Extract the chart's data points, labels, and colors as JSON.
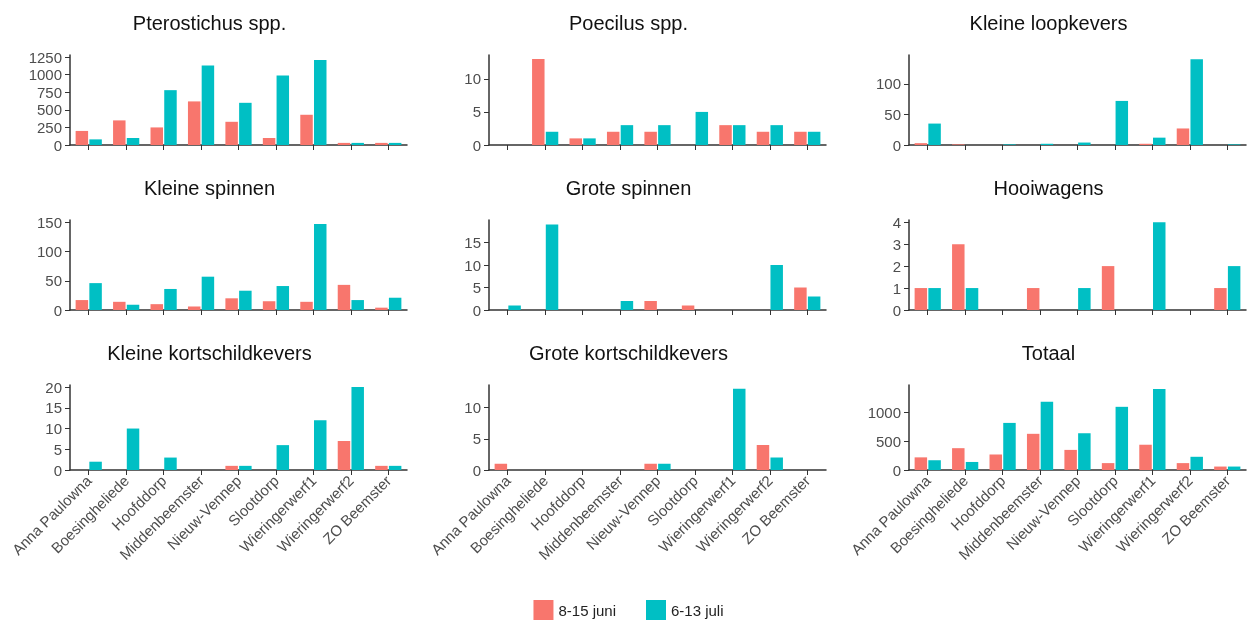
{
  "chart_data": [
    {
      "type": "bar",
      "title": "Pterostichus spp.",
      "categories": [
        null,
        null,
        null,
        null,
        null,
        null,
        null,
        null,
        null
      ],
      "series": [
        {
          "color": "#f8766d",
          "values": [
            200,
            350,
            250,
            620,
            330,
            100,
            430,
            30,
            30
          ]
        },
        {
          "color": "#00bfc4",
          "values": [
            80,
            100,
            780,
            1130,
            600,
            990,
            1210,
            30,
            30
          ]
        }
      ],
      "ylim": [
        0,
        1280
      ],
      "yticks": [
        0,
        250,
        500,
        750,
        1000,
        1250
      ],
      "grid": false,
      "legend": false,
      "tick_labels": "y"
    },
    {
      "type": "bar",
      "title": "Poecilus spp.",
      "categories": [
        null,
        null,
        null,
        null,
        null,
        null,
        null,
        null,
        null
      ],
      "series": [
        {
          "color": "#f8766d",
          "values": [
            null,
            13,
            1,
            2,
            2,
            null,
            3,
            2,
            2
          ]
        },
        {
          "color": "#00bfc4",
          "values": [
            null,
            2,
            1,
            3,
            3,
            5,
            3,
            3,
            2
          ]
        }
      ],
      "ylim": [
        0,
        13.6
      ],
      "yticks": [
        0,
        5,
        10
      ],
      "grid": false,
      "legend": false,
      "tick_labels": "y"
    },
    {
      "type": "bar",
      "title": "Kleine loopkevers",
      "categories": [
        null,
        null,
        null,
        null,
        null,
        null,
        null,
        null,
        null
      ],
      "series": [
        {
          "color": "#f8766d",
          "values": [
            3,
            1,
            null,
            null,
            null,
            null,
            2,
            27,
            null
          ]
        },
        {
          "color": "#00bfc4",
          "values": [
            35,
            null,
            1,
            2,
            4,
            72,
            12,
            140,
            1
          ]
        }
      ],
      "ylim": [
        0,
        147
      ],
      "yticks": [
        0,
        50,
        100
      ],
      "grid": false,
      "legend": false,
      "tick_labels": "y"
    },
    {
      "type": "bar",
      "title": "Kleine spinnen",
      "categories": [
        null,
        null,
        null,
        null,
        null,
        null,
        null,
        null,
        null
      ],
      "series": [
        {
          "color": "#f8766d",
          "values": [
            17,
            14,
            10,
            6,
            20,
            15,
            14,
            43,
            4
          ]
        },
        {
          "color": "#00bfc4",
          "values": [
            46,
            9,
            36,
            57,
            33,
            41,
            147,
            17,
            21
          ]
        }
      ],
      "ylim": [
        0,
        154
      ],
      "yticks": [
        0,
        50,
        100,
        150
      ],
      "grid": false,
      "legend": false,
      "tick_labels": "y"
    },
    {
      "type": "bar",
      "title": "Grote spinnen",
      "categories": [
        null,
        null,
        null,
        null,
        null,
        null,
        null,
        null,
        null
      ],
      "series": [
        {
          "color": "#f8766d",
          "values": [
            null,
            null,
            null,
            null,
            2,
            1,
            null,
            null,
            5
          ]
        },
        {
          "color": "#00bfc4",
          "values": [
            1,
            19,
            null,
            2,
            null,
            null,
            null,
            10,
            3
          ]
        }
      ],
      "ylim": [
        0,
        20
      ],
      "yticks": [
        0,
        5,
        10,
        15
      ],
      "grid": false,
      "legend": false,
      "tick_labels": "y"
    },
    {
      "type": "bar",
      "title": "Hooiwagens",
      "categories": [
        null,
        null,
        null,
        null,
        null,
        null,
        null,
        null,
        null
      ],
      "series": [
        {
          "color": "#f8766d",
          "values": [
            1,
            3,
            null,
            1,
            null,
            2,
            null,
            null,
            1
          ]
        },
        {
          "color": "#00bfc4",
          "values": [
            1,
            1,
            null,
            null,
            1,
            null,
            4,
            null,
            2
          ]
        }
      ],
      "ylim": [
        0,
        4.1
      ],
      "yticks": [
        0,
        1,
        2,
        3,
        4
      ],
      "grid": false,
      "legend": false,
      "tick_labels": "y"
    },
    {
      "type": "bar",
      "title": "Kleine kortschildkevers",
      "categories": [
        "Anna Paulowna",
        "Boesingheliede",
        "Hoofddorp",
        "Middenbeemster",
        "Nieuw-Vennep",
        "Slootdorp",
        "Wieringerwerf1",
        "Wieringerwerf2",
        "ZO Beemster"
      ],
      "series": [
        {
          "color": "#f8766d",
          "values": [
            null,
            null,
            null,
            null,
            1,
            null,
            null,
            7,
            1
          ]
        },
        {
          "color": "#00bfc4",
          "values": [
            2,
            10,
            3,
            null,
            1,
            6,
            12,
            20,
            1
          ]
        }
      ],
      "ylim": [
        0,
        20.5
      ],
      "yticks": [
        0,
        5,
        10,
        15,
        20
      ],
      "grid": false,
      "legend": false
    },
    {
      "type": "bar",
      "title": "Grote kortschildkevers",
      "categories": [
        "Anna Paulowna",
        "Boesingheliede",
        "Hoofddorp",
        "Middenbeemster",
        "Nieuw-Vennep",
        "Slootdorp",
        "Wieringerwerf1",
        "Wieringerwerf2",
        "ZO Beemster"
      ],
      "series": [
        {
          "name": "8-15 juni",
          "color": "#f8766d",
          "values": [
            1,
            null,
            null,
            null,
            1,
            null,
            null,
            4,
            null
          ]
        },
        {
          "name": "6-13 juli",
          "color": "#00bfc4",
          "values": [
            null,
            null,
            null,
            null,
            1,
            null,
            13,
            2,
            null
          ]
        }
      ],
      "ylim": [
        0,
        13.6
      ],
      "yticks": [
        0,
        5,
        10
      ],
      "grid": false,
      "legend": "bottom"
    },
    {
      "type": "bar",
      "title": "Totaal",
      "categories": [
        "Anna Paulowna",
        "Boesingheliede",
        "Hoofddorp",
        "Middenbeemster",
        "Nieuw-Vennep",
        "Slootdorp",
        "Wieringerwerf1",
        "Wieringerwerf2",
        "ZO Beemster"
      ],
      "series": [
        {
          "color": "#f8766d",
          "values": [
            220,
            380,
            270,
            630,
            350,
            120,
            440,
            120,
            60
          ]
        },
        {
          "color": "#00bfc4",
          "values": [
            170,
            140,
            820,
            1190,
            640,
            1100,
            1410,
            230,
            60
          ]
        }
      ],
      "ylim": [
        0,
        1480
      ],
      "yticks": [
        0,
        500,
        1000
      ],
      "grid": false,
      "legend": false
    }
  ]
}
